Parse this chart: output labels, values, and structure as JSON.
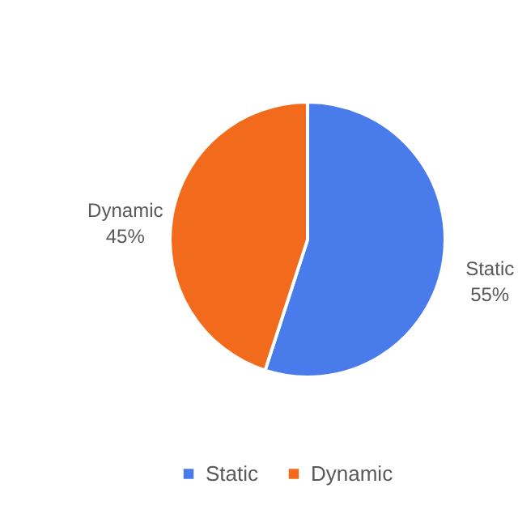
{
  "chart_data": {
    "type": "pie",
    "categories": [
      "Static",
      "Dynamic"
    ],
    "values": [
      55,
      45
    ],
    "value_labels": [
      "55%",
      "45%"
    ],
    "colors": [
      "#4a7bea",
      "#f26a1c"
    ],
    "legend": "bottom"
  }
}
